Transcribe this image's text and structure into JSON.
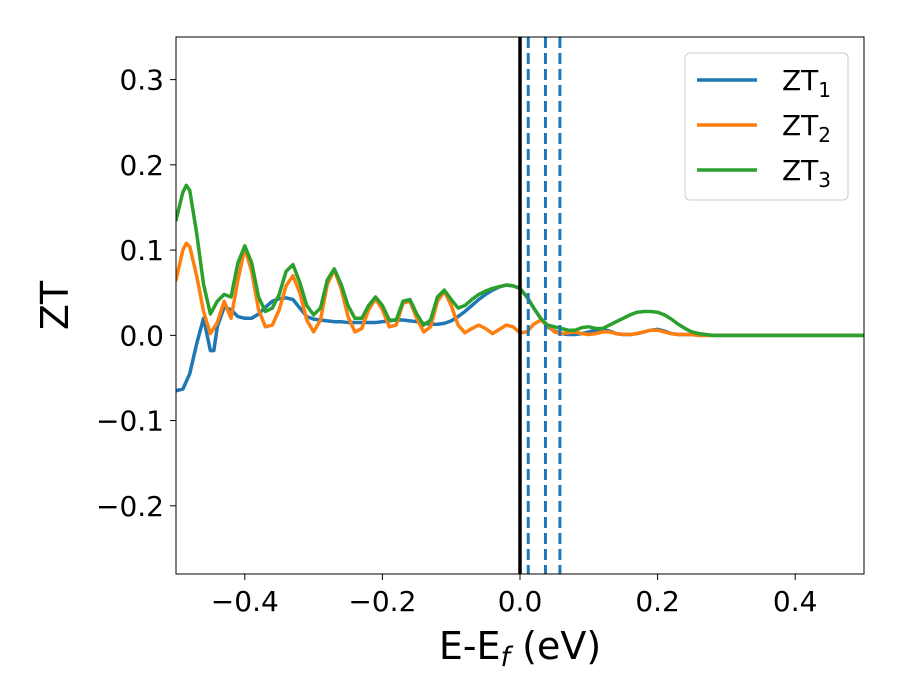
{
  "chart_data": {
    "type": "line",
    "xlabel_main": "E-E",
    "xlabel_sub": "f",
    "xlabel_unit": " (eV)",
    "ylabel": "ZT",
    "xlim": [
      -0.5,
      0.5
    ],
    "ylim": [
      -0.28,
      0.35
    ],
    "x_ticks": [
      -0.4,
      -0.2,
      0.0,
      0.2,
      0.4
    ],
    "x_tick_labels": [
      "−0.4",
      "−0.2",
      "0.0",
      "0.2",
      "0.4"
    ],
    "y_ticks": [
      -0.2,
      -0.1,
      0.0,
      0.1,
      0.2,
      0.3
    ],
    "y_tick_labels": [
      "−0.2",
      "−0.1",
      "0.0",
      "0.1",
      "0.2",
      "0.3"
    ],
    "grid": false,
    "legend_position": "top-right",
    "vertical_lines": [
      {
        "x": 0.0,
        "style": "solid",
        "color": "#000000"
      },
      {
        "x": 0.012,
        "style": "dashed",
        "color": "#1f77b4"
      },
      {
        "x": 0.037,
        "style": "dashed",
        "color": "#1f77b4"
      },
      {
        "x": 0.058,
        "style": "dashed",
        "color": "#1f77b4"
      }
    ],
    "series": [
      {
        "name_main": "ZT",
        "name_sub": "1",
        "color": "#1f77b4",
        "x": [
          -0.5,
          -0.49,
          -0.48,
          -0.47,
          -0.46,
          -0.45,
          -0.445,
          -0.44,
          -0.43,
          -0.42,
          -0.41,
          -0.4,
          -0.39,
          -0.38,
          -0.37,
          -0.36,
          -0.35,
          -0.34,
          -0.33,
          -0.32,
          -0.31,
          -0.3,
          -0.29,
          -0.28,
          -0.27,
          -0.26,
          -0.25,
          -0.24,
          -0.23,
          -0.22,
          -0.21,
          -0.2,
          -0.19,
          -0.18,
          -0.17,
          -0.16,
          -0.15,
          -0.14,
          -0.13,
          -0.12,
          -0.11,
          -0.1,
          -0.09,
          -0.08,
          -0.07,
          -0.06,
          -0.05,
          -0.04,
          -0.03,
          -0.02,
          -0.01,
          0.0,
          0.01,
          0.02,
          0.03,
          0.04,
          0.05,
          0.06,
          0.07,
          0.08,
          0.09,
          0.1,
          0.11,
          0.12,
          0.13,
          0.14,
          0.15,
          0.16,
          0.17,
          0.18,
          0.19,
          0.2,
          0.21,
          0.22,
          0.23,
          0.24,
          0.25,
          0.26,
          0.27,
          0.28,
          0.3,
          0.35,
          0.4,
          0.45,
          0.5
        ],
        "y": [
          -0.065,
          -0.063,
          -0.045,
          -0.01,
          0.02,
          -0.018,
          -0.018,
          0.01,
          0.033,
          0.03,
          0.022,
          0.02,
          0.02,
          0.025,
          0.033,
          0.04,
          0.043,
          0.044,
          0.042,
          0.032,
          0.022,
          0.019,
          0.018,
          0.017,
          0.016,
          0.016,
          0.015,
          0.015,
          0.015,
          0.015,
          0.015,
          0.016,
          0.017,
          0.018,
          0.018,
          0.017,
          0.016,
          0.014,
          0.013,
          0.013,
          0.014,
          0.017,
          0.022,
          0.028,
          0.035,
          0.042,
          0.048,
          0.053,
          0.057,
          0.059,
          0.058,
          0.055,
          0.045,
          0.032,
          0.02,
          0.01,
          0.005,
          0.002,
          0.001,
          0.001,
          0.002,
          0.004,
          0.006,
          0.007,
          0.005,
          0.002,
          0.001,
          0.001,
          0.002,
          0.004,
          0.006,
          0.007,
          0.005,
          0.002,
          0.001,
          0.001,
          0.001,
          0.0,
          0.0,
          0.0,
          0.0,
          0.0,
          0.0,
          0.0,
          0.0
        ]
      },
      {
        "name_main": "ZT",
        "name_sub": "2",
        "color": "#ff7f0e",
        "x": [
          -0.5,
          -0.49,
          -0.485,
          -0.48,
          -0.47,
          -0.46,
          -0.45,
          -0.44,
          -0.43,
          -0.42,
          -0.41,
          -0.4,
          -0.39,
          -0.38,
          -0.37,
          -0.36,
          -0.35,
          -0.34,
          -0.33,
          -0.32,
          -0.31,
          -0.3,
          -0.29,
          -0.28,
          -0.27,
          -0.26,
          -0.25,
          -0.24,
          -0.23,
          -0.22,
          -0.21,
          -0.2,
          -0.19,
          -0.18,
          -0.17,
          -0.16,
          -0.15,
          -0.14,
          -0.13,
          -0.12,
          -0.11,
          -0.1,
          -0.09,
          -0.08,
          -0.07,
          -0.06,
          -0.05,
          -0.04,
          -0.03,
          -0.02,
          -0.01,
          0.0,
          0.01,
          0.02,
          0.03,
          0.04,
          0.05,
          0.06,
          0.07,
          0.08,
          0.09,
          0.1,
          0.11,
          0.12,
          0.13,
          0.14,
          0.15,
          0.16,
          0.17,
          0.18,
          0.19,
          0.2,
          0.21,
          0.22,
          0.23,
          0.24,
          0.25,
          0.26,
          0.27,
          0.28,
          0.3,
          0.35,
          0.4,
          0.45,
          0.5
        ],
        "y": [
          0.065,
          0.1,
          0.108,
          0.104,
          0.07,
          0.028,
          0.002,
          0.015,
          0.04,
          0.02,
          0.065,
          0.102,
          0.075,
          0.03,
          0.01,
          0.012,
          0.03,
          0.058,
          0.07,
          0.05,
          0.018,
          0.004,
          0.018,
          0.06,
          0.077,
          0.055,
          0.022,
          0.004,
          0.008,
          0.03,
          0.043,
          0.03,
          0.01,
          0.012,
          0.038,
          0.04,
          0.02,
          0.004,
          0.01,
          0.04,
          0.052,
          0.035,
          0.012,
          0.003,
          0.008,
          0.012,
          0.008,
          0.002,
          0.007,
          0.012,
          0.01,
          0.003,
          0.004,
          0.013,
          0.018,
          0.012,
          0.004,
          0.002,
          0.003,
          0.004,
          0.002,
          0.001,
          0.002,
          0.004,
          0.004,
          0.002,
          0.001,
          0.001,
          0.002,
          0.004,
          0.006,
          0.006,
          0.004,
          0.002,
          0.001,
          0.001,
          0.001,
          0.0,
          0.0,
          0.0,
          0.0,
          0.0,
          0.0,
          0.0,
          0.0
        ]
      },
      {
        "name_main": "ZT",
        "name_sub": "3",
        "color": "#2ca02c",
        "x": [
          -0.5,
          -0.49,
          -0.485,
          -0.48,
          -0.47,
          -0.46,
          -0.45,
          -0.44,
          -0.43,
          -0.42,
          -0.41,
          -0.4,
          -0.39,
          -0.38,
          -0.37,
          -0.36,
          -0.35,
          -0.34,
          -0.33,
          -0.32,
          -0.31,
          -0.3,
          -0.29,
          -0.28,
          -0.27,
          -0.26,
          -0.25,
          -0.24,
          -0.23,
          -0.22,
          -0.21,
          -0.2,
          -0.19,
          -0.18,
          -0.17,
          -0.16,
          -0.15,
          -0.14,
          -0.13,
          -0.12,
          -0.11,
          -0.1,
          -0.09,
          -0.08,
          -0.07,
          -0.06,
          -0.05,
          -0.04,
          -0.03,
          -0.02,
          -0.01,
          0.0,
          0.01,
          0.02,
          0.03,
          0.04,
          0.05,
          0.06,
          0.07,
          0.08,
          0.09,
          0.1,
          0.11,
          0.12,
          0.13,
          0.14,
          0.15,
          0.16,
          0.17,
          0.18,
          0.19,
          0.2,
          0.21,
          0.22,
          0.23,
          0.24,
          0.25,
          0.26,
          0.27,
          0.28,
          0.3,
          0.35,
          0.4,
          0.45,
          0.5
        ],
        "y": [
          0.135,
          0.168,
          0.176,
          0.17,
          0.12,
          0.06,
          0.025,
          0.04,
          0.048,
          0.045,
          0.085,
          0.105,
          0.085,
          0.045,
          0.028,
          0.032,
          0.048,
          0.075,
          0.083,
          0.062,
          0.035,
          0.024,
          0.032,
          0.065,
          0.078,
          0.06,
          0.035,
          0.02,
          0.02,
          0.035,
          0.045,
          0.035,
          0.018,
          0.018,
          0.04,
          0.042,
          0.025,
          0.012,
          0.018,
          0.045,
          0.053,
          0.042,
          0.032,
          0.035,
          0.042,
          0.048,
          0.052,
          0.055,
          0.057,
          0.059,
          0.058,
          0.055,
          0.045,
          0.032,
          0.02,
          0.012,
          0.01,
          0.008,
          0.006,
          0.006,
          0.009,
          0.01,
          0.008,
          0.008,
          0.012,
          0.016,
          0.02,
          0.024,
          0.027,
          0.028,
          0.028,
          0.027,
          0.024,
          0.019,
          0.013,
          0.008,
          0.004,
          0.002,
          0.001,
          0.0,
          0.0,
          0.0,
          0.0,
          0.0,
          0.0
        ]
      }
    ]
  }
}
